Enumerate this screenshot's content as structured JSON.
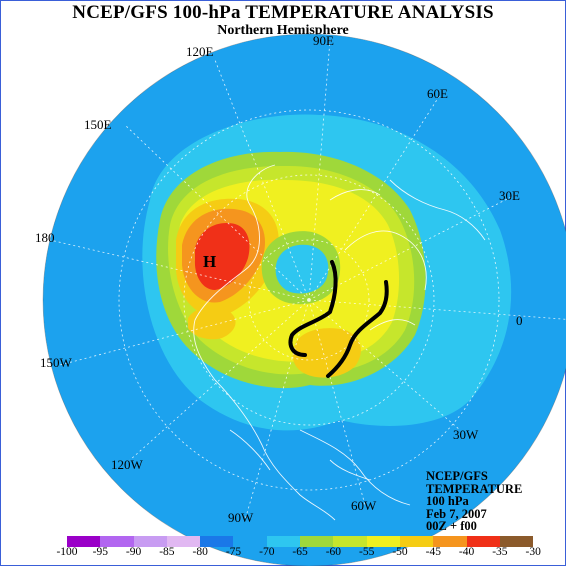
{
  "title": "NCEP/GFS 100-hPa TEMPERATURE ANALYSIS",
  "subtitle": "Northern Hemisphere",
  "longitude_labels": {
    "lon_90e": "90E",
    "lon_120e": "120E",
    "lon_60e": "60E",
    "lon_150e": "150E",
    "lon_30e": "30E",
    "lon_180": "180",
    "lon_0": "0",
    "lon_150w": "150W",
    "lon_30w": "30W",
    "lon_120w": "120W",
    "lon_60w": "60W",
    "lon_90w": "90W"
  },
  "high_marker": "H",
  "info": {
    "line1": "NCEP/GFS",
    "line2": "TEMPERATURE",
    "line3": "100 hPa",
    "line4": "Feb 7, 2007",
    "line5": "00Z + f00"
  },
  "legend": {
    "ticks": [
      "-100",
      "-95",
      "-90",
      "-85",
      "-80",
      "-75",
      "-70",
      "-65",
      "-60",
      "-55",
      "-50",
      "-45",
      "-40",
      "-35",
      "-30"
    ],
    "colors": [
      "#9a00c8",
      "#b266f0",
      "#c89cf2",
      "#e1b8f2",
      "#1a78e8",
      "#1ca2ee",
      "#2ec6f0",
      "#9fd83a",
      "#c6e62c",
      "#f0f020",
      "#f5cc14",
      "#f5951e",
      "#f03018",
      "#8b5a2b",
      "#7a7a7a"
    ]
  },
  "colors": {
    "ocean_base": "#2ec6f0",
    "deep_blue": "#1ca2ee",
    "green": "#9fd83a",
    "yellow": "#f0f020",
    "orange": "#f5951e",
    "red": "#f03018"
  }
}
